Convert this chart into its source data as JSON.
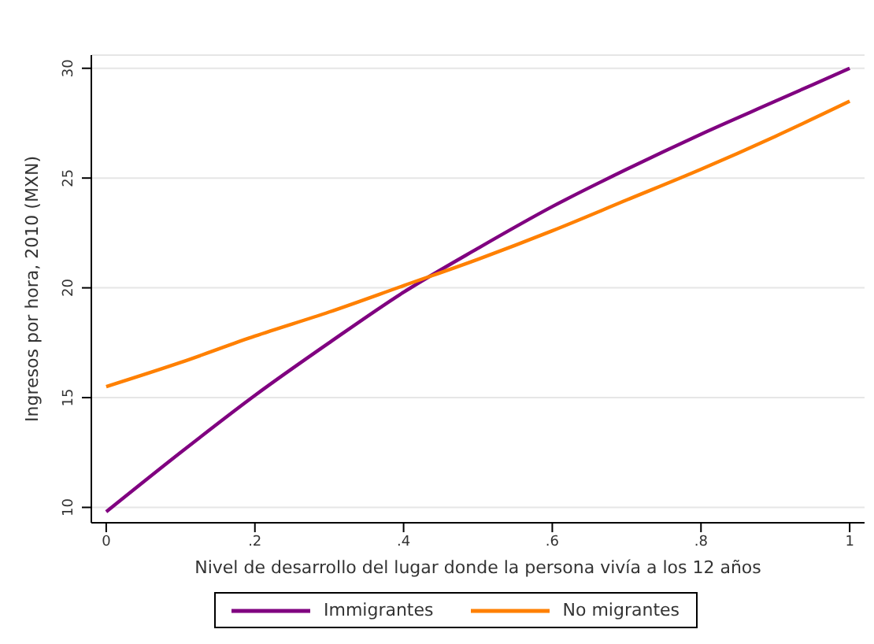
{
  "chart_data": {
    "type": "line",
    "xlabel": "Nivel de desarrollo del lugar donde la persona vivía a los 12 años",
    "ylabel": "Ingresos por hora, 2010 (MXN)",
    "x": [
      0,
      0.1,
      0.2,
      0.3,
      0.4,
      0.5,
      0.6,
      0.7,
      0.8,
      0.9,
      1
    ],
    "series": [
      {
        "name": "Immigrantes",
        "color": "#800080",
        "values": [
          9.8,
          12.5,
          15.1,
          17.5,
          19.8,
          21.8,
          23.7,
          25.4,
          27.0,
          28.5,
          30
        ]
      },
      {
        "name": "No migrantes",
        "color": "#ff8000",
        "values": [
          15.5,
          16.6,
          17.8,
          18.9,
          20.1,
          21.3,
          22.6,
          24.0,
          25.4,
          26.9,
          28.5
        ]
      }
    ],
    "xlim": [
      -0.02,
      1.02
    ],
    "xticks": [
      {
        "value": 0,
        "label": "0"
      },
      {
        "value": 0.2,
        "label": ".2"
      },
      {
        "value": 0.4,
        "label": ".4"
      },
      {
        "value": 0.6,
        "label": ".6"
      },
      {
        "value": 0.8,
        "label": ".8"
      },
      {
        "value": 1,
        "label": "1"
      }
    ],
    "ylim": [
      9.3,
      30.6
    ],
    "yticks": [
      10,
      15,
      20,
      25,
      30
    ],
    "grid": "y",
    "legend": "bottom",
    "marker": "none",
    "line_style": "solid"
  }
}
